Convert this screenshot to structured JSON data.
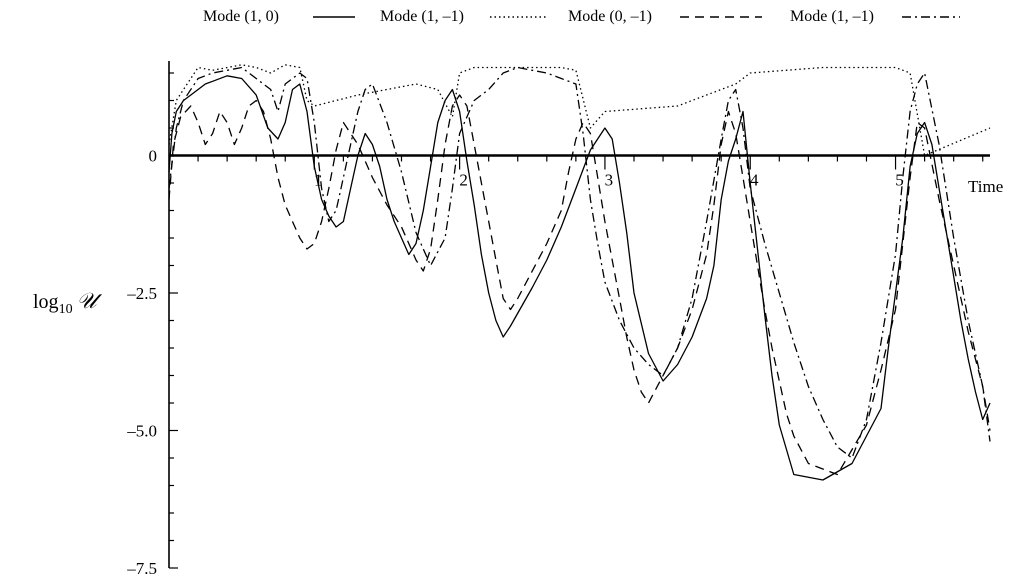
{
  "chart_data": {
    "type": "line",
    "title": "",
    "xlabel": "Time",
    "ylabel": {
      "prefix": "log",
      "subscript": "10",
      "symbol": "𝒰"
    },
    "xlim": [
      0,
      5.65
    ],
    "ylim": [
      -7.5,
      1.5
    ],
    "xticks": [
      1,
      2,
      3,
      4,
      5
    ],
    "yticks": [
      0,
      -2.5,
      -5.0,
      -7.5
    ],
    "ytick_labels": [
      "0",
      "–2.5",
      "–5.0",
      "–7.5"
    ],
    "legend_position": "top",
    "series": [
      {
        "name": "Mode (1, 0)",
        "dash": "solid",
        "x": [
          0,
          0.02,
          0.05,
          0.1,
          0.15,
          0.2,
          0.25,
          0.3,
          0.4,
          0.5,
          0.6,
          0.68,
          0.75,
          0.8,
          0.85,
          0.9,
          0.95,
          1.0,
          1.05,
          1.1,
          1.15,
          1.2,
          1.25,
          1.3,
          1.35,
          1.4,
          1.45,
          1.5,
          1.55,
          1.6,
          1.65,
          1.7,
          1.75,
          1.8,
          1.85,
          1.9,
          1.95,
          2.0,
          2.05,
          2.1,
          2.15,
          2.2,
          2.25,
          2.3,
          2.35,
          2.5,
          2.6,
          2.7,
          2.8,
          2.9,
          3.0,
          3.05,
          3.1,
          3.15,
          3.2,
          3.3,
          3.4,
          3.5,
          3.6,
          3.7,
          3.75,
          3.8,
          3.85,
          3.9,
          3.95,
          4.0,
          4.05,
          4.1,
          4.15,
          4.2,
          4.3,
          4.5,
          4.7,
          4.9,
          4.95,
          5.0,
          5.05,
          5.1,
          5.15,
          5.2,
          5.25,
          5.3,
          5.35,
          5.4,
          5.45,
          5.5,
          5.55,
          5.6,
          5.65
        ],
        "values": [
          -0.3,
          0.4,
          0.8,
          1.0,
          1.1,
          1.2,
          1.3,
          1.35,
          1.45,
          1.4,
          1.1,
          0.5,
          0.3,
          0.6,
          1.2,
          1.3,
          0.8,
          -0.2,
          -0.8,
          -1.1,
          -1.3,
          -1.2,
          -0.6,
          0.0,
          0.4,
          0.2,
          -0.2,
          -0.8,
          -1.2,
          -1.5,
          -1.8,
          -1.6,
          -1.0,
          -0.2,
          0.6,
          1.0,
          1.2,
          0.8,
          -0.1,
          -0.9,
          -1.8,
          -2.5,
          -3.0,
          -3.3,
          -3.1,
          -2.4,
          -1.9,
          -1.3,
          -0.6,
          0.1,
          0.5,
          0.3,
          -0.5,
          -1.4,
          -2.5,
          -3.6,
          -4.1,
          -3.8,
          -3.3,
          -2.6,
          -2.0,
          -0.8,
          -0.1,
          0.3,
          0.8,
          -0.5,
          -1.7,
          -2.9,
          -4.0,
          -4.9,
          -5.8,
          -5.9,
          -5.6,
          -4.6,
          -3.5,
          -2.5,
          -1.5,
          -0.2,
          0.4,
          0.6,
          0.2,
          -0.6,
          -1.4,
          -2.2,
          -3.0,
          -3.7,
          -4.3,
          -4.8,
          -4.5
        ]
      },
      {
        "name": "Mode (1, –1)",
        "dash": "dotted",
        "x": [
          0,
          0.05,
          0.1,
          0.2,
          0.3,
          0.5,
          0.6,
          0.7,
          0.8,
          0.9,
          0.95,
          1.0,
          1.3,
          1.7,
          1.85,
          1.95,
          2.0,
          2.1,
          2.4,
          2.7,
          2.8,
          2.9,
          3.0,
          3.5,
          3.7,
          3.8,
          3.9,
          4.0,
          4.5,
          5.0,
          5.1,
          5.2,
          5.65
        ],
        "values": [
          0.2,
          1.0,
          1.2,
          1.6,
          1.55,
          1.65,
          1.6,
          1.5,
          1.65,
          1.6,
          1.0,
          0.9,
          1.1,
          1.3,
          1.2,
          0.7,
          1.5,
          1.6,
          1.6,
          1.6,
          1.55,
          0.5,
          0.8,
          0.9,
          1.1,
          1.2,
          1.3,
          1.5,
          1.6,
          1.6,
          1.5,
          0.0,
          0.5
        ]
      },
      {
        "name": "Mode (0, –1)",
        "dash": "dashed",
        "x": [
          0,
          0.03,
          0.08,
          0.15,
          0.2,
          0.25,
          0.3,
          0.35,
          0.4,
          0.45,
          0.5,
          0.55,
          0.6,
          0.65,
          0.7,
          0.75,
          0.8,
          0.85,
          0.9,
          0.95,
          1.0,
          1.05,
          1.1,
          1.15,
          1.2,
          1.3,
          1.4,
          1.5,
          1.6,
          1.65,
          1.7,
          1.75,
          1.8,
          1.85,
          1.9,
          1.95,
          2.0,
          2.05,
          2.1,
          2.15,
          2.2,
          2.25,
          2.3,
          2.35,
          2.4,
          2.6,
          2.7,
          2.75,
          2.8,
          2.85,
          2.9,
          2.95,
          3.0,
          3.05,
          3.1,
          3.15,
          3.2,
          3.25,
          3.3,
          3.5,
          3.6,
          3.7,
          3.75,
          3.8,
          3.85,
          3.9,
          3.95,
          4.0,
          4.05,
          4.1,
          4.15,
          4.2,
          4.25,
          4.3,
          4.4,
          4.6,
          4.8,
          4.9,
          5.0,
          5.05,
          5.1,
          5.15,
          5.2,
          5.3,
          5.4,
          5.5,
          5.6,
          5.65
        ],
        "values": [
          -0.8,
          0.2,
          0.7,
          0.9,
          0.6,
          0.2,
          0.4,
          0.8,
          0.6,
          0.2,
          0.5,
          0.9,
          1.0,
          0.8,
          0.3,
          -0.4,
          -0.9,
          -1.2,
          -1.5,
          -1.7,
          -1.6,
          -1.2,
          -0.6,
          0.1,
          0.6,
          0.2,
          -0.4,
          -0.9,
          -1.3,
          -1.6,
          -1.9,
          -2.1,
          -1.7,
          -0.8,
          0.2,
          0.9,
          1.1,
          0.9,
          0.2,
          -0.5,
          -1.2,
          -1.9,
          -2.6,
          -2.8,
          -2.6,
          -1.6,
          -1.0,
          -0.3,
          0.3,
          0.6,
          0.4,
          -0.4,
          -1.2,
          -1.9,
          -2.6,
          -3.3,
          -3.9,
          -4.3,
          -4.5,
          -3.5,
          -2.8,
          -1.8,
          -0.9,
          0.2,
          0.8,
          0.4,
          -0.4,
          -1.2,
          -2.0,
          -2.8,
          -3.5,
          -4.1,
          -4.7,
          -5.1,
          -5.6,
          -5.8,
          -4.9,
          -3.9,
          -2.8,
          -1.6,
          -0.4,
          0.6,
          0.5,
          -0.8,
          -2.0,
          -3.2,
          -4.2,
          -5.0
        ]
      },
      {
        "name": "Mode (1, –1)",
        "dash": "dashdot",
        "x": [
          0,
          0.05,
          0.1,
          0.2,
          0.3,
          0.4,
          0.5,
          0.6,
          0.7,
          0.75,
          0.8,
          0.9,
          0.95,
          1.0,
          1.05,
          1.1,
          1.15,
          1.2,
          1.25,
          1.3,
          1.35,
          1.4,
          1.5,
          1.6,
          1.7,
          1.8,
          1.9,
          1.95,
          2.0,
          2.1,
          2.2,
          2.3,
          2.4,
          2.5,
          2.6,
          2.7,
          2.8,
          2.85,
          2.9,
          2.95,
          3.0,
          3.1,
          3.2,
          3.3,
          3.4,
          3.5,
          3.6,
          3.7,
          3.8,
          3.85,
          3.9,
          3.95,
          4.0,
          4.1,
          4.2,
          4.3,
          4.4,
          4.5,
          4.6,
          4.7,
          4.8,
          4.9,
          5.0,
          5.05,
          5.1,
          5.15,
          5.2,
          5.3,
          5.4,
          5.5,
          5.6,
          5.65
        ],
        "values": [
          -0.6,
          0.5,
          1.0,
          1.4,
          1.5,
          1.55,
          1.6,
          1.4,
          1.2,
          0.8,
          1.3,
          1.5,
          1.4,
          0.6,
          -0.6,
          -1.2,
          -1.0,
          -0.4,
          0.2,
          0.8,
          1.2,
          1.3,
          0.6,
          -0.3,
          -1.4,
          -2.0,
          -1.5,
          -0.6,
          0.4,
          1.0,
          1.2,
          1.5,
          1.6,
          1.55,
          1.5,
          1.4,
          1.3,
          0.4,
          -0.8,
          -1.6,
          -2.3,
          -3.0,
          -3.5,
          -3.8,
          -4.0,
          -3.5,
          -2.6,
          -1.2,
          0.3,
          1.0,
          1.2,
          0.5,
          -0.6,
          -1.6,
          -2.5,
          -3.4,
          -4.2,
          -4.8,
          -5.3,
          -5.5,
          -4.8,
          -3.4,
          -1.8,
          -0.4,
          0.8,
          1.3,
          1.5,
          0.2,
          -1.5,
          -3.0,
          -4.2,
          -5.2
        ]
      }
    ]
  }
}
